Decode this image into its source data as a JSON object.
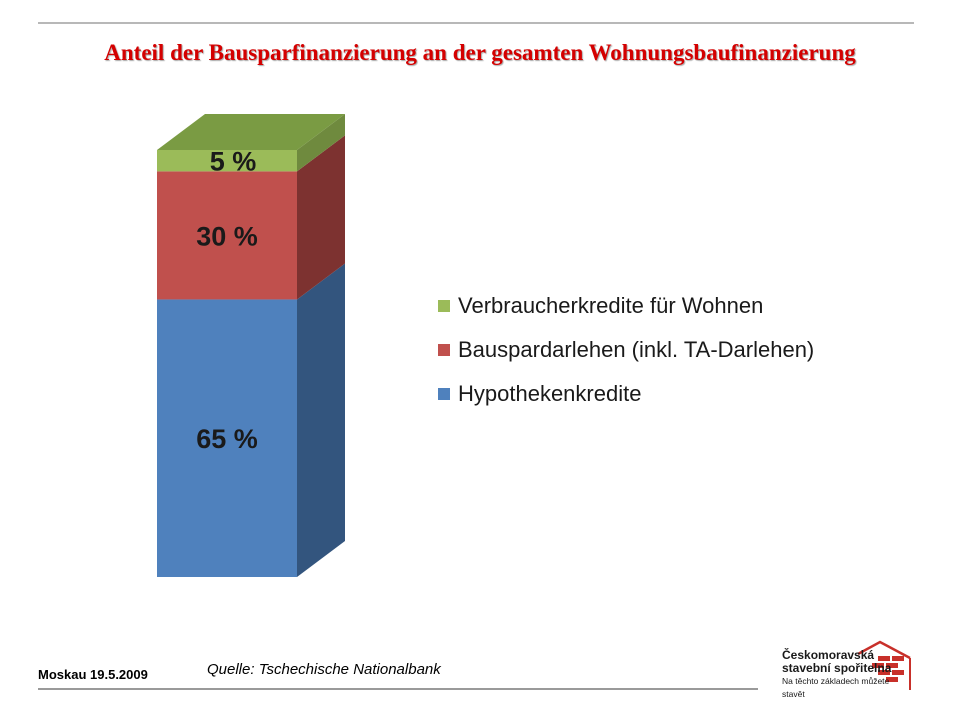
{
  "slide": {
    "title": "Anteil der Bausparfinanzierung an der gesamten Wohnungsbaufinanzierung",
    "footer_left": "Moskau  19.5.2009",
    "source": "Quelle: Tschechische Nationalbank"
  },
  "logo": {
    "line1": "Českomoravská",
    "line2": "stavební spořitelna",
    "line3": "Na těchto základech můžete stavět",
    "colors": {
      "brick": "#c8302a",
      "text": "#1a1a1a"
    }
  },
  "chart_data": {
    "type": "bar",
    "style": "3d-stacked-100",
    "title": "",
    "xlabel": "",
    "ylabel": "",
    "ylim": [
      0,
      100
    ],
    "grid": false,
    "legend_position": "right",
    "categories": [
      ""
    ],
    "series": [
      {
        "name": "Hypothekenkredite",
        "values": [
          65
        ],
        "label": "65 %",
        "color": "#4f81bd",
        "side_color": "#33557e",
        "top_color": "#3d6596"
      },
      {
        "name": "Bauspardarlehen (inkl. TA-Darlehen)",
        "values": [
          30
        ],
        "label": "30 %",
        "color": "#c0504d",
        "side_color": "#7d3230",
        "top_color": "#9a3f3c"
      },
      {
        "name": "Verbraucherkredite für Wohnen",
        "values": [
          5
        ],
        "label": "5 %",
        "color": "#9bbb59",
        "side_color": "#6f8a3e",
        "top_color": "#7a9b43"
      }
    ],
    "legend_order": [
      2,
      1,
      0
    ]
  }
}
